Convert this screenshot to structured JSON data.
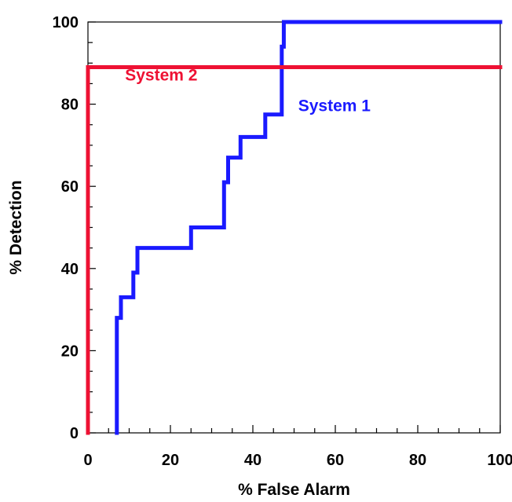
{
  "chart_data": {
    "type": "line",
    "title": "",
    "xlabel": "% False Alarm",
    "ylabel": "% Detection",
    "xlim": [
      0,
      100
    ],
    "ylim": [
      0,
      100
    ],
    "grid": false,
    "x_ticks": [
      0,
      20,
      40,
      60,
      80,
      100
    ],
    "y_ticks": [
      0,
      20,
      40,
      60,
      80,
      100
    ],
    "x_tick_labels": [
      "0",
      "20",
      "40",
      "60",
      "80",
      "100"
    ],
    "y_tick_labels": [
      "0",
      "20",
      "40",
      "60",
      "80",
      "100"
    ],
    "series": [
      {
        "name": "System 1",
        "color": "#1a1aff",
        "points": [
          [
            7,
            0
          ],
          [
            7,
            28
          ],
          [
            8,
            28
          ],
          [
            8,
            33
          ],
          [
            11,
            33
          ],
          [
            11,
            39
          ],
          [
            12,
            39
          ],
          [
            12,
            45
          ],
          [
            25,
            45
          ],
          [
            25,
            50
          ],
          [
            33,
            50
          ],
          [
            33,
            61
          ],
          [
            34,
            61
          ],
          [
            34,
            67
          ],
          [
            37,
            67
          ],
          [
            37,
            72
          ],
          [
            43,
            72
          ],
          [
            43,
            77.5
          ],
          [
            47,
            77.5
          ],
          [
            47,
            94
          ],
          [
            47.5,
            94
          ],
          [
            47.5,
            100
          ],
          [
            100,
            100
          ]
        ]
      },
      {
        "name": "System 2",
        "color": "#ee1133",
        "points": [
          [
            0,
            0
          ],
          [
            0,
            89
          ],
          [
            100,
            89
          ]
        ]
      }
    ],
    "annotations": [
      {
        "text": "System 2",
        "x": 9,
        "y": 85,
        "color": "#ee1133"
      },
      {
        "text": "System 1",
        "x": 51,
        "y": 77.5,
        "color": "#1a1aff"
      }
    ]
  }
}
